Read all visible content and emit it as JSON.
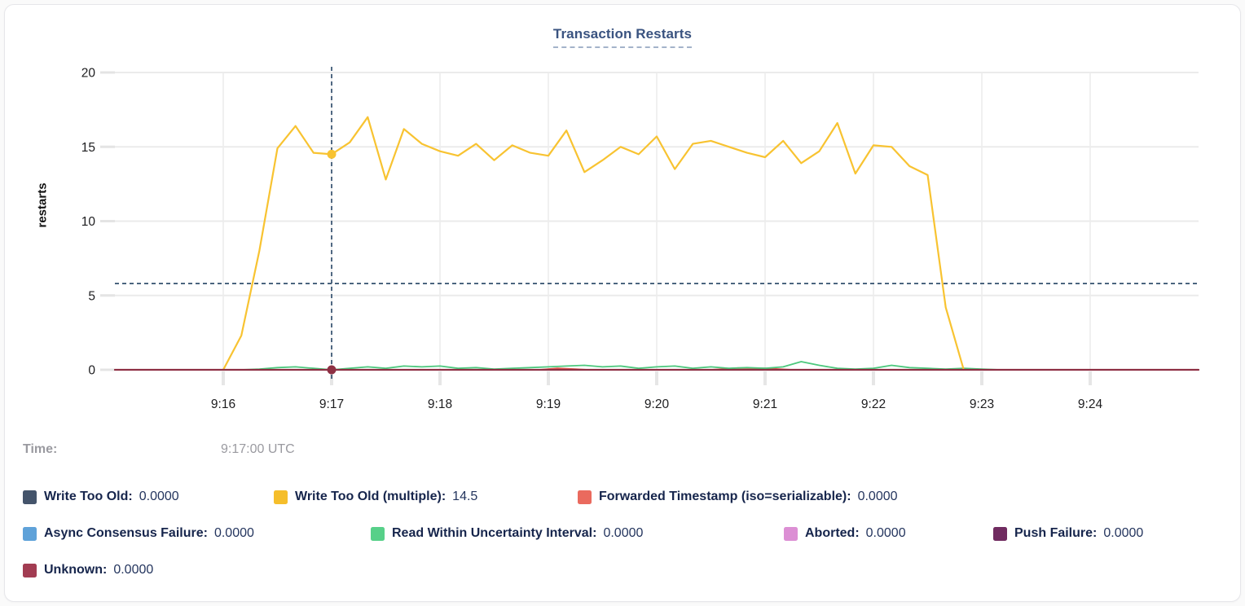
{
  "title": "Transaction Restarts",
  "tooltip": {
    "time_label": "Time:",
    "time_value": "9:17:00 UTC"
  },
  "legend": {
    "items": [
      {
        "label": "Write Too Old:",
        "value": "0.0000",
        "color": "#44546B"
      },
      {
        "label": "Write Too Old (multiple):",
        "value": "14.5",
        "color": "#F5BE2B"
      },
      {
        "label": "Forwarded Timestamp (iso=serializable):",
        "value": "0.0000",
        "color": "#EA6A5E"
      },
      {
        "label": "Async Consensus Failure:",
        "value": "0.0000",
        "color": "#5FA2D9"
      },
      {
        "label": "Read Within Uncertainty Interval:",
        "value": "0.0000",
        "color": "#57D089"
      },
      {
        "label": "Aborted:",
        "value": "0.0000",
        "color": "#DC8FD4"
      },
      {
        "label": "Push Failure:",
        "value": "0.0000",
        "color": "#702B60"
      },
      {
        "label": "Unknown:",
        "value": "0.0000",
        "color": "#A23C52"
      }
    ]
  },
  "chart_data": {
    "type": "line",
    "title": "Transaction Restarts",
    "xlabel": "",
    "ylabel": "restarts",
    "ylim": [
      0,
      20
    ],
    "y_ticks": [
      0,
      5,
      10,
      15,
      20
    ],
    "x_ticks": [
      "9:16",
      "9:17",
      "9:18",
      "9:19",
      "9:20",
      "9:21",
      "9:22",
      "9:23",
      "9:24"
    ],
    "x_domain_seconds_after_915": [
      0,
      600
    ],
    "grid": true,
    "legend_position": "bottom",
    "series": [
      {
        "name": "Write Too Old",
        "color": "#44546B",
        "width": 1.5,
        "points": [
          [
            0,
            0
          ],
          [
            600,
            0
          ]
        ]
      },
      {
        "name": "Async Consensus Failure",
        "color": "#5FA2D9",
        "width": 1.5,
        "points": [
          [
            0,
            0
          ],
          [
            600,
            0
          ]
        ]
      },
      {
        "name": "Aborted",
        "color": "#DC8FD4",
        "width": 1.5,
        "points": [
          [
            0,
            0
          ],
          [
            600,
            0
          ]
        ]
      },
      {
        "name": "Push Failure",
        "color": "#702B60",
        "width": 1.5,
        "points": [
          [
            0,
            0
          ],
          [
            600,
            0
          ]
        ]
      },
      {
        "name": "Forwarded Timestamp (iso=serializable)",
        "color": "#E2574B",
        "width": 1.8,
        "points": [
          [
            0,
            0
          ],
          [
            235,
            0
          ],
          [
            245,
            0.1
          ],
          [
            255,
            0.05
          ],
          [
            262,
            0
          ],
          [
            330,
            0
          ],
          [
            345,
            0.12
          ],
          [
            360,
            0.1
          ],
          [
            375,
            0
          ],
          [
            600,
            0
          ]
        ]
      },
      {
        "name": "Read Within Uncertainty Interval",
        "color": "#4CC87D",
        "width": 1.8,
        "points": [
          [
            0,
            0
          ],
          [
            70,
            0
          ],
          [
            80,
            0.05
          ],
          [
            90,
            0.15
          ],
          [
            100,
            0.2
          ],
          [
            110,
            0.1
          ],
          [
            120,
            0
          ],
          [
            130,
            0.1
          ],
          [
            140,
            0.2
          ],
          [
            150,
            0.1
          ],
          [
            160,
            0.25
          ],
          [
            170,
            0.2
          ],
          [
            180,
            0.25
          ],
          [
            190,
            0.1
          ],
          [
            200,
            0.15
          ],
          [
            210,
            0.05
          ],
          [
            220,
            0.1
          ],
          [
            230,
            0.15
          ],
          [
            240,
            0.2
          ],
          [
            250,
            0.25
          ],
          [
            260,
            0.3
          ],
          [
            270,
            0.2
          ],
          [
            280,
            0.25
          ],
          [
            290,
            0.1
          ],
          [
            300,
            0.2
          ],
          [
            310,
            0.25
          ],
          [
            320,
            0.1
          ],
          [
            330,
            0.2
          ],
          [
            340,
            0.1
          ],
          [
            350,
            0.15
          ],
          [
            360,
            0.1
          ],
          [
            370,
            0.2
          ],
          [
            380,
            0.55
          ],
          [
            390,
            0.3
          ],
          [
            400,
            0.1
          ],
          [
            410,
            0.05
          ],
          [
            420,
            0.1
          ],
          [
            430,
            0.3
          ],
          [
            440,
            0.15
          ],
          [
            450,
            0.1
          ],
          [
            460,
            0.05
          ],
          [
            470,
            0.1
          ],
          [
            480,
            0.05
          ],
          [
            490,
            0
          ],
          [
            600,
            0
          ]
        ]
      },
      {
        "name": "Write Too Old (multiple)",
        "color": "#F8C331",
        "width": 2.2,
        "points": [
          [
            60,
            0
          ],
          [
            70,
            2.3
          ],
          [
            80,
            8
          ],
          [
            90,
            14.9
          ],
          [
            100,
            16.4
          ],
          [
            110,
            14.6
          ],
          [
            120,
            14.5
          ],
          [
            130,
            15.3
          ],
          [
            140,
            17
          ],
          [
            150,
            12.8
          ],
          [
            160,
            16.2
          ],
          [
            170,
            15.2
          ],
          [
            180,
            14.7
          ],
          [
            190,
            14.4
          ],
          [
            200,
            15.2
          ],
          [
            210,
            14.1
          ],
          [
            220,
            15.1
          ],
          [
            230,
            14.6
          ],
          [
            240,
            14.4
          ],
          [
            250,
            16.1
          ],
          [
            260,
            13.3
          ],
          [
            270,
            14.1
          ],
          [
            280,
            15
          ],
          [
            290,
            14.5
          ],
          [
            300,
            15.7
          ],
          [
            310,
            13.5
          ],
          [
            320,
            15.2
          ],
          [
            330,
            15.4
          ],
          [
            340,
            15
          ],
          [
            350,
            14.6
          ],
          [
            360,
            14.3
          ],
          [
            370,
            15.4
          ],
          [
            380,
            13.9
          ],
          [
            390,
            14.7
          ],
          [
            400,
            16.6
          ],
          [
            410,
            13.2
          ],
          [
            420,
            15.1
          ],
          [
            430,
            15
          ],
          [
            440,
            13.7
          ],
          [
            450,
            13.1
          ],
          [
            460,
            4.2
          ],
          [
            470,
            0
          ]
        ]
      },
      {
        "name": "Unknown",
        "color": "#8E3044",
        "width": 2.2,
        "points": [
          [
            0,
            0
          ],
          [
            600,
            0
          ]
        ]
      }
    ],
    "crosshair": {
      "t_seconds": 120,
      "time_label": "9:17",
      "line_color": "#33506E",
      "hline_value": 5.8,
      "dots": [
        {
          "series": "Write Too Old (multiple)",
          "value": 14.5,
          "color": "#F8C331"
        },
        {
          "series": "Unknown",
          "value": 0,
          "color": "#8E3044"
        }
      ]
    }
  }
}
